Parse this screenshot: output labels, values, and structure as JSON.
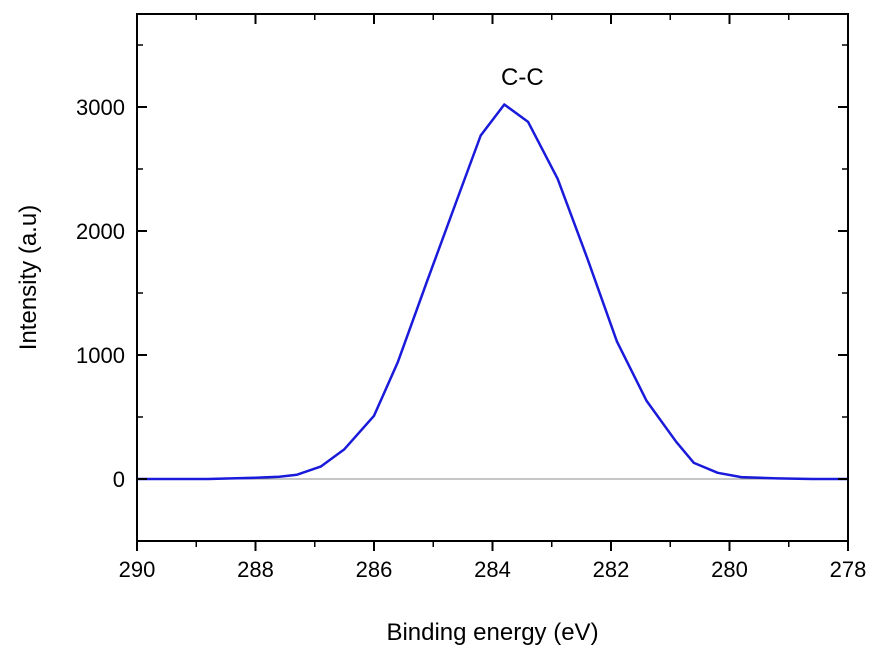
{
  "chart_data": {
    "type": "line",
    "title": "",
    "xlabel": "Binding energy (eV)",
    "ylabel": "Intensity (a.u)",
    "xlim": [
      290,
      278
    ],
    "x_reversed": true,
    "ylim": [
      -500,
      3750
    ],
    "x_ticks": [
      290,
      288,
      286,
      284,
      282,
      280,
      278
    ],
    "x_tick_labels": [
      "290",
      "288",
      "286",
      "284",
      "282",
      "280",
      "278"
    ],
    "y_ticks": [
      0,
      1000,
      2000,
      3000
    ],
    "y_tick_labels": [
      "0",
      "1000",
      "2000",
      "3000"
    ],
    "grid": false,
    "baseline": 0,
    "series": [
      {
        "color": "#1a1adb",
        "x": [
          290.0,
          289.6,
          289.2,
          288.8,
          288.4,
          288.0,
          287.6,
          287.3,
          286.9,
          286.5,
          286.0,
          285.6,
          285.1,
          284.6,
          284.2,
          283.8,
          283.4,
          282.9,
          282.4,
          281.9,
          281.4,
          280.9,
          280.6,
          280.2,
          279.8,
          279.2,
          278.6,
          278.0
        ],
        "y": [
          0,
          0,
          0,
          0,
          5,
          10,
          18,
          35,
          100,
          240,
          510,
          940,
          1600,
          2250,
          2770,
          3020,
          2880,
          2420,
          1780,
          1110,
          630,
          300,
          130,
          50,
          15,
          5,
          0,
          0
        ]
      }
    ],
    "annotations": [
      {
        "text": "C-C",
        "x": 283.8,
        "y": 3240
      }
    ]
  }
}
